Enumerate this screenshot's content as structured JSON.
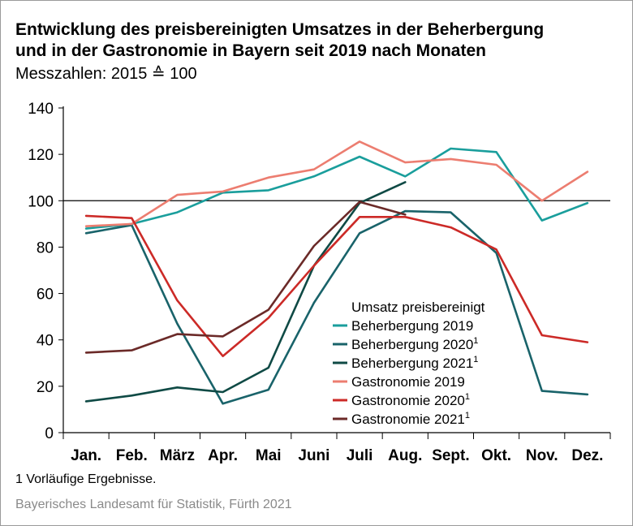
{
  "header": {
    "title_line1": "Entwicklung des preisbereinigten Umsatzes in der Beherbergung",
    "title_line2": "und in der Gastronomie in Bayern seit 2019 nach Monaten",
    "subtitle": "Messzahlen: 2015 ≙ 100"
  },
  "footer": {
    "footnote": "1  Vorläufige Ergebnisse.",
    "source": "Bayerisches Landesamt für Statistik, Fürth 2021"
  },
  "chart_data": {
    "type": "line",
    "title": "Entwicklung des preisbereinigten Umsatzes in der Beherbergung und in der Gastronomie in Bayern seit 2019 nach Monaten",
    "subtitle": "Messzahlen: 2015 ≙ 100",
    "categories": [
      "Jan.",
      "Feb.",
      "März",
      "Apr.",
      "Mai",
      "Juni",
      "Juli",
      "Aug.",
      "Sept.",
      "Okt.",
      "Nov.",
      "Dez."
    ],
    "ylim": [
      0,
      140
    ],
    "yticks": [
      0,
      20,
      40,
      60,
      80,
      100,
      120,
      140
    ],
    "reference_line": 100,
    "grid": false,
    "legend_title": "Umsatz preisbereinigt",
    "legend_position": "center-right",
    "series": [
      {
        "name": "Beherbergung 2019",
        "sup": "",
        "color": "#1a9e9c",
        "values": [
          88,
          90,
          95,
          103.5,
          104.5,
          110.5,
          119,
          110.5,
          122.5,
          121,
          91.5,
          99
        ]
      },
      {
        "name": "Beherbergung 2020",
        "sup": "1",
        "color": "#19636a",
        "values": [
          86,
          89.5,
          47,
          12.5,
          18.5,
          56,
          86,
          95.5,
          95,
          77.5,
          18,
          16.5
        ]
      },
      {
        "name": "Beherbergung 2021",
        "sup": "1",
        "color": "#0f4a45",
        "values": [
          13.5,
          16,
          19.5,
          17.5,
          28,
          72,
          99,
          108,
          null,
          null,
          null,
          null
        ]
      },
      {
        "name": "Gastronomie 2019",
        "sup": "",
        "color": "#ec7d70",
        "values": [
          89,
          90,
          102.5,
          104,
          110,
          113.5,
          125.5,
          116.5,
          118,
          115.5,
          100,
          112.5
        ]
      },
      {
        "name": "Gastronomie 2020",
        "sup": "1",
        "color": "#cc2a27",
        "values": [
          93.5,
          92.5,
          57,
          33,
          49.5,
          72,
          93,
          93,
          88.5,
          79,
          42,
          39
        ]
      },
      {
        "name": "Gastronomie 2021",
        "sup": "1",
        "color": "#6b2a28",
        "values": [
          34.5,
          35.5,
          42.5,
          41.5,
          53,
          80.5,
          99.5,
          94,
          null,
          null,
          null,
          null
        ]
      }
    ]
  }
}
